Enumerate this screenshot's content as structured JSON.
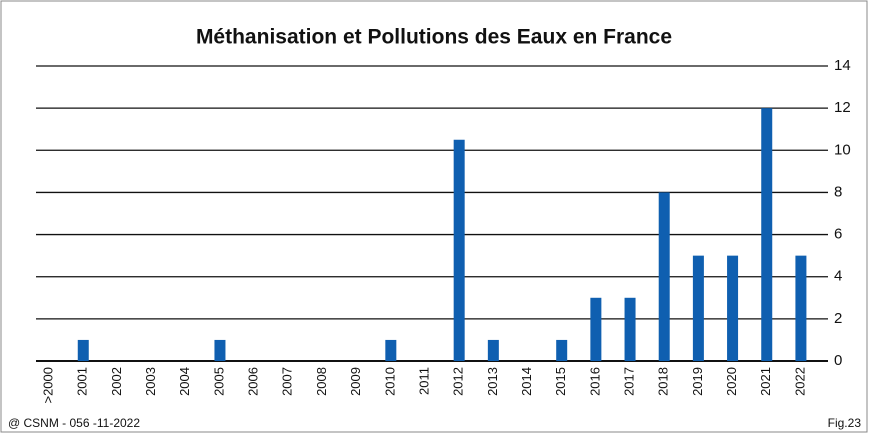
{
  "chart_data": {
    "type": "bar",
    "title": "Méthanisation et Pollutions des Eaux en France",
    "categories": [
      ">2000",
      "2001",
      "2002",
      "2003",
      "2004",
      "2005",
      "2006",
      "2007",
      "2008",
      "2009",
      "2010",
      "2011",
      "2012",
      "2013",
      "2014",
      "2015",
      "2016",
      "2017",
      "2018",
      "2019",
      "2020",
      "2021",
      "2022"
    ],
    "values": [
      0,
      1,
      0,
      0,
      0,
      1,
      0,
      0,
      0,
      0,
      1,
      0,
      10.5,
      1,
      0,
      1,
      3,
      3,
      8,
      5,
      5,
      12,
      5
    ],
    "color": "#0f5fb0",
    "ylim": [
      0,
      14
    ],
    "yticks": [
      0,
      2,
      4,
      6,
      8,
      10,
      12,
      14
    ],
    "grid": true,
    "footer_left": "@ CSNM - 056 -11-2022",
    "footer_right": "Fig.23"
  }
}
